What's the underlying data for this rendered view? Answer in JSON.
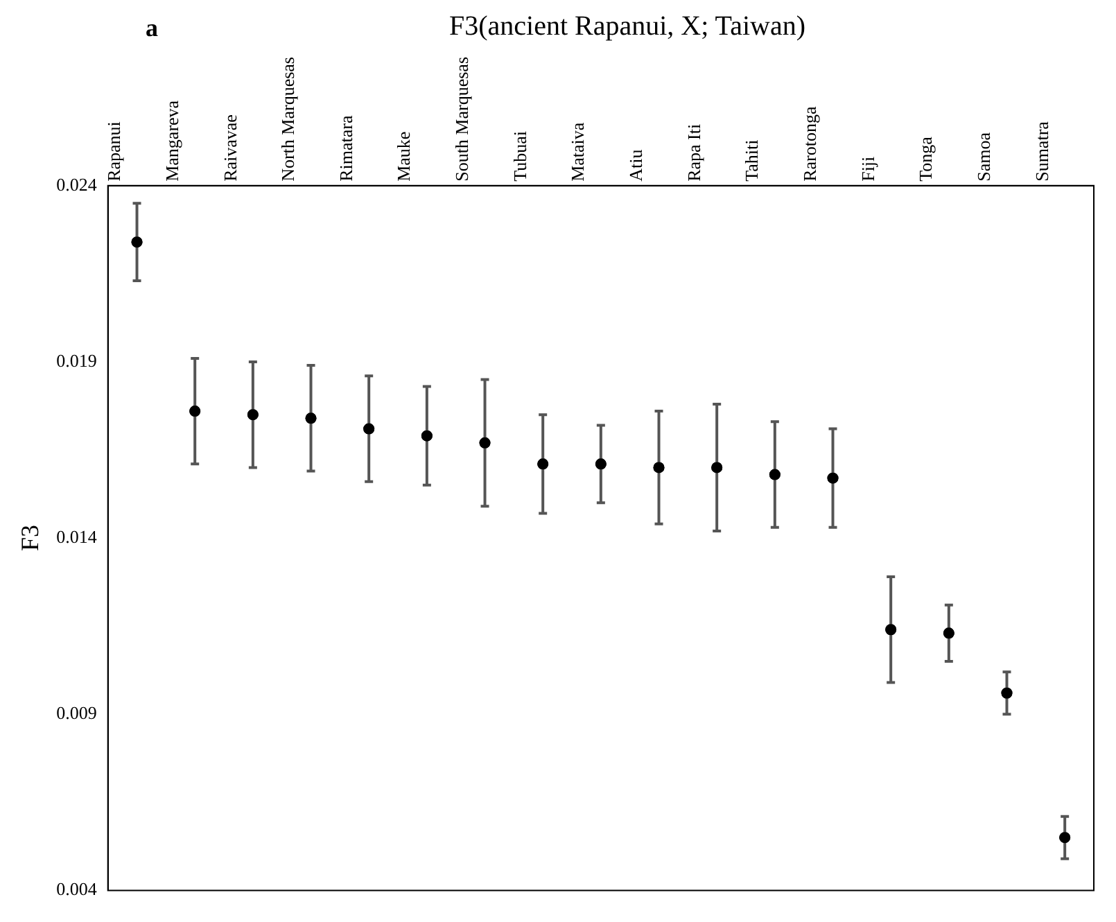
{
  "chart_data": {
    "type": "scatter",
    "title": "F3(ancient Rapanui, X; Taiwan)",
    "ylabel": "F3",
    "annotations": [
      "a"
    ],
    "categories": [
      "Rapanui",
      "Mangareva",
      "Raivavae",
      "North Marquesas",
      "Rimatara",
      "Mauke",
      "South Marquesas",
      "Tubuai",
      "Mataiva",
      "Atiu",
      "Rapa Iti",
      "Tahiti",
      "Rarotonga",
      "Fiji",
      "Tonga",
      "Samoa",
      "Sumatra"
    ],
    "values": [
      0.0224,
      0.0176,
      0.0175,
      0.0174,
      0.0171,
      0.0169,
      0.0167,
      0.0161,
      0.0161,
      0.016,
      0.016,
      0.0158,
      0.0157,
      0.0114,
      0.0113,
      0.0096,
      0.0055
    ],
    "errors": [
      0.0011,
      0.0015,
      0.0015,
      0.0015,
      0.0015,
      0.0014,
      0.0018,
      0.0014,
      0.0011,
      0.0016,
      0.0018,
      0.0015,
      0.0014,
      0.0015,
      0.0008,
      0.0006,
      0.0006
    ],
    "color": "#000000",
    "marker": "circle",
    "ylim": [
      0.004,
      0.024
    ],
    "yticks": [
      0.004,
      0.009,
      0.014,
      0.019,
      0.024
    ],
    "grid": false,
    "legend": false
  }
}
